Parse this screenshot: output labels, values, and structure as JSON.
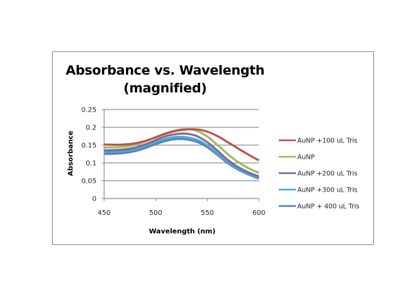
{
  "chart_data": {
    "type": "line",
    "title": "Absorbance vs. Wavelength",
    "subtitle": "(magnified)",
    "xlabel": "Wavelength (nm)",
    "ylabel": "Absorbance",
    "xlim": [
      450,
      600
    ],
    "ylim": [
      0,
      0.25
    ],
    "x_ticks": [
      "450",
      "500",
      "550",
      "600"
    ],
    "y_ticks": [
      "0",
      "0.05",
      "0.1",
      "0.15",
      "0.2",
      "0.25"
    ],
    "grid": "horizontal",
    "legend_position": "right",
    "x": [
      450,
      460,
      470,
      480,
      490,
      500,
      510,
      520,
      530,
      540,
      550,
      560,
      570,
      580,
      590,
      600
    ],
    "series": [
      {
        "name": "AuNP +100 uL Tris",
        "color": "#c0504d",
        "values": [
          0.152,
          0.151,
          0.152,
          0.155,
          0.162,
          0.172,
          0.182,
          0.19,
          0.194,
          0.194,
          0.188,
          0.175,
          0.158,
          0.14,
          0.123,
          0.107
        ]
      },
      {
        "name": "AuNP",
        "color": "#9bbb59",
        "values": [
          0.143,
          0.144,
          0.146,
          0.151,
          0.16,
          0.172,
          0.184,
          0.192,
          0.195,
          0.19,
          0.174,
          0.15,
          0.124,
          0.102,
          0.085,
          0.072
        ]
      },
      {
        "name": "AuNP +200 uL Tris",
        "color": "#8064a2",
        "values": [
          0.135,
          0.136,
          0.138,
          0.143,
          0.152,
          0.164,
          0.175,
          0.181,
          0.182,
          0.175,
          0.158,
          0.134,
          0.108,
          0.088,
          0.073,
          0.062
        ]
      },
      {
        "name": "AuNP +300 uL Tris",
        "color": "#4bacc6",
        "values": [
          0.13,
          0.131,
          0.133,
          0.138,
          0.147,
          0.158,
          0.168,
          0.173,
          0.172,
          0.165,
          0.149,
          0.126,
          0.102,
          0.083,
          0.069,
          0.059
        ]
      },
      {
        "name": "AuNP + 400 uL Tris",
        "color": "#4f81bd",
        "values": [
          0.125,
          0.126,
          0.128,
          0.133,
          0.142,
          0.153,
          0.162,
          0.167,
          0.166,
          0.159,
          0.144,
          0.122,
          0.099,
          0.081,
          0.067,
          0.056
        ]
      }
    ]
  }
}
